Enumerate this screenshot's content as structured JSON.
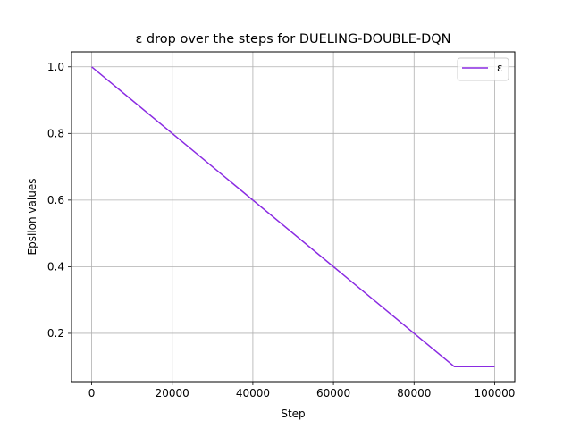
{
  "chart_data": {
    "type": "line",
    "title": "ε drop over the steps for DUELING-DOUBLE-DQN",
    "xlabel": "Step",
    "ylabel": "Epsilon values",
    "xlim": [
      -5000,
      105000
    ],
    "ylim": [
      0.055,
      1.045
    ],
    "xticks": [
      0,
      20000,
      40000,
      60000,
      80000,
      100000
    ],
    "xtick_labels": [
      "0",
      "20000",
      "40000",
      "60000",
      "80000",
      "100000"
    ],
    "yticks": [
      0.2,
      0.4,
      0.6,
      0.8,
      1.0
    ],
    "ytick_labels": [
      "0.2",
      "0.4",
      "0.6",
      "0.8",
      "1.0"
    ],
    "grid": true,
    "legend_position": "upper right",
    "series": [
      {
        "name": "ε",
        "color": "#8a2be2",
        "x": [
          0,
          90000,
          100000
        ],
        "y": [
          1.0,
          0.1,
          0.1
        ]
      }
    ]
  }
}
